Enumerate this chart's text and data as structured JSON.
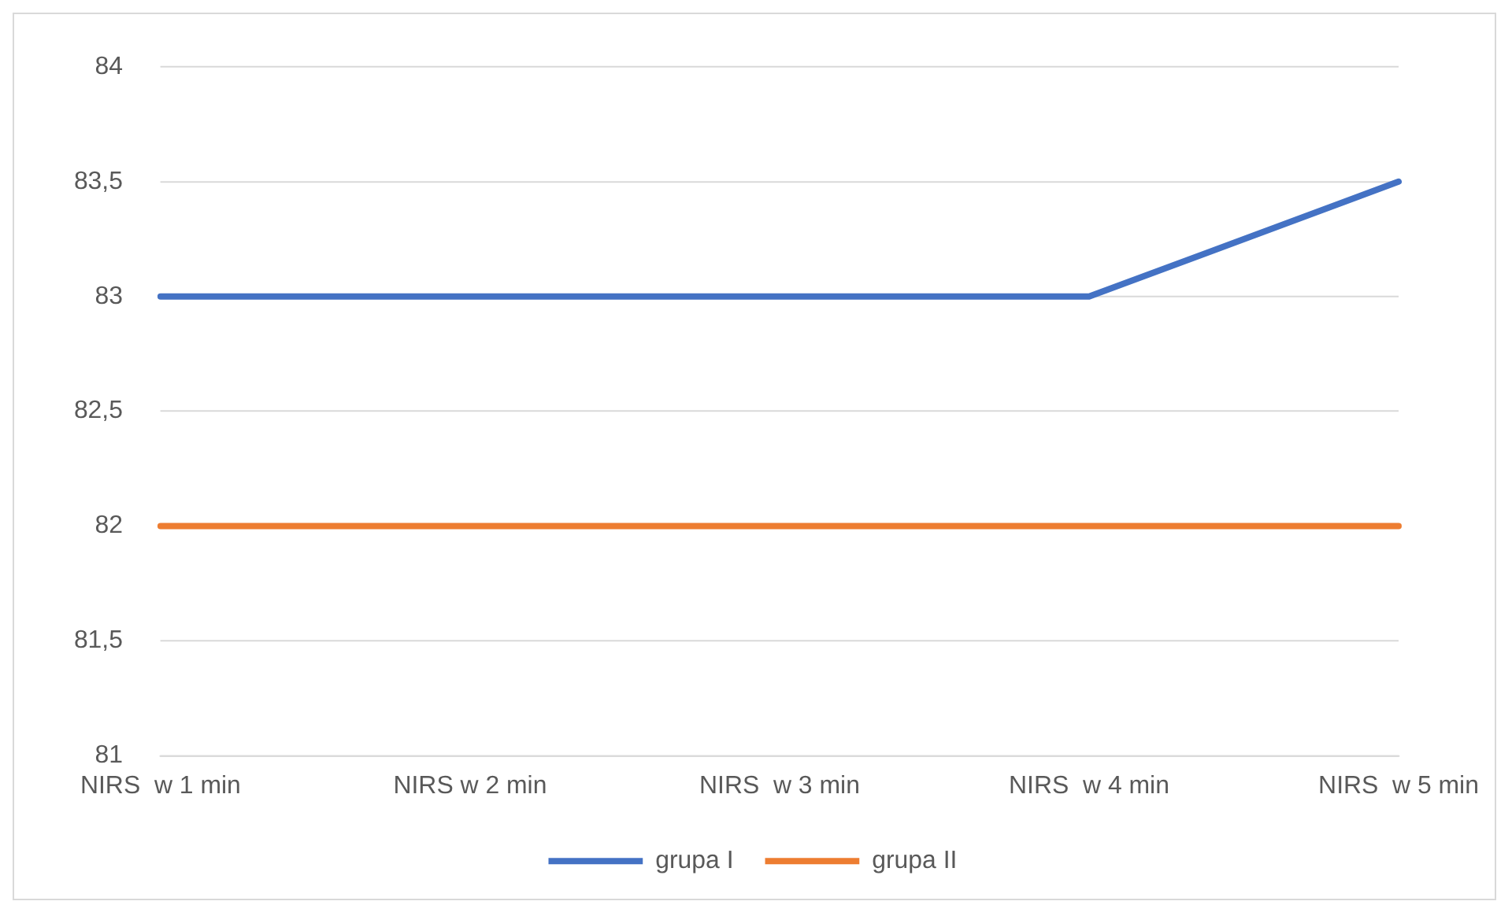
{
  "chart_data": {
    "type": "line",
    "categories": [
      "NIRS  w 1 min",
      "NIRS w 2 min",
      "NIRS  w 3 min",
      "NIRS  w 4 min",
      "NIRS  w 5 min"
    ],
    "series": [
      {
        "name": "grupa I",
        "color": "#4472c4",
        "values": [
          83,
          83,
          83,
          83,
          83.5
        ]
      },
      {
        "name": "grupa II",
        "color": "#ed7d31",
        "values": [
          82,
          82,
          82,
          82,
          82
        ]
      }
    ],
    "ylim": [
      81,
      84
    ],
    "yticks": [
      81,
      {
        "value": 81.5,
        "label": "81,5"
      },
      82,
      {
        "value": 82.5,
        "label": "82,5"
      },
      83,
      {
        "value": 83.5,
        "label": "83,5"
      },
      84
    ],
    "grid": "y",
    "legend": "bottom",
    "marker": "none",
    "line_style": "solid"
  }
}
